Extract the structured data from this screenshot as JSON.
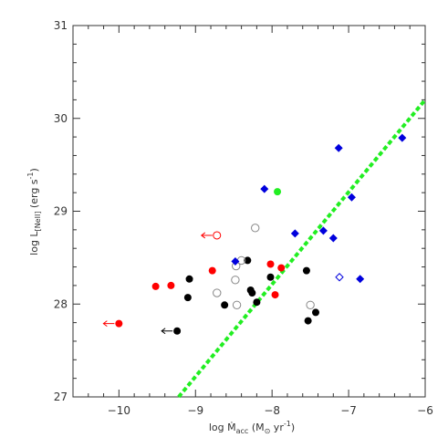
{
  "chart_data": {
    "type": "scatter",
    "title": "",
    "xlabel": {
      "prefix": "log ",
      "symbol": "Ṁ",
      "sub": "acc",
      "units_open": " (M",
      "units_sub": "⊙",
      "units_mid": " yr",
      "units_sup": "-1",
      "units_close": ")"
    },
    "ylabel": {
      "prefix": "log L",
      "sub": "[NeII]",
      "units_open": " (erg s",
      "units_sup": "-1",
      "units_close": ")"
    },
    "xlim": [
      -10.6,
      -6.0
    ],
    "ylim": [
      27.0,
      31.0
    ],
    "xticks": [
      {
        "value": -10,
        "label": "−10"
      },
      {
        "value": -9,
        "label": "−9"
      },
      {
        "value": -8,
        "label": "−8"
      },
      {
        "value": -7,
        "label": "−7"
      },
      {
        "value": -6,
        "label": "−6"
      }
    ],
    "yticks": [
      {
        "value": 27,
        "label": "27"
      },
      {
        "value": 28,
        "label": "28"
      },
      {
        "value": 29,
        "label": "29"
      },
      {
        "value": 30,
        "label": "30"
      },
      {
        "value": 31,
        "label": "31"
      }
    ],
    "colors": {
      "black": "#000000",
      "red": "#ff0000",
      "green": "#22ee22",
      "blue": "#0000dd",
      "gray": "#888888",
      "fit": "#22ee22",
      "axis": "#333333"
    },
    "fit_line": {
      "x": [
        -9.22,
        -6.0
      ],
      "y": [
        27.0,
        30.2
      ]
    },
    "series": [
      {
        "marker": "filled-circle",
        "color": "black",
        "points": [
          {
            "x": -9.08,
            "y": 28.27
          },
          {
            "x": -9.1,
            "y": 28.07
          },
          {
            "x": -8.62,
            "y": 27.99
          },
          {
            "x": -8.32,
            "y": 28.47
          },
          {
            "x": -8.28,
            "y": 28.15
          },
          {
            "x": -8.26,
            "y": 28.12
          },
          {
            "x": -8.2,
            "y": 28.02
          },
          {
            "x": -8.02,
            "y": 28.29
          },
          {
            "x": -7.55,
            "y": 28.36
          },
          {
            "x": -7.53,
            "y": 27.82
          },
          {
            "x": -7.43,
            "y": 27.91
          }
        ]
      },
      {
        "marker": "filled-circle",
        "color": "red",
        "points": [
          {
            "x": -9.52,
            "y": 28.19
          },
          {
            "x": -9.32,
            "y": 28.2
          },
          {
            "x": -8.78,
            "y": 28.36
          },
          {
            "x": -8.02,
            "y": 28.43
          },
          {
            "x": -7.96,
            "y": 28.1
          },
          {
            "x": -7.88,
            "y": 28.39
          }
        ]
      },
      {
        "marker": "filled-circle",
        "color": "green",
        "points": [
          {
            "x": -7.93,
            "y": 29.21
          }
        ]
      },
      {
        "marker": "open-circle",
        "color": "gray",
        "points": [
          {
            "x": -8.72,
            "y": 28.12
          },
          {
            "x": -8.48,
            "y": 28.26
          },
          {
            "x": -8.47,
            "y": 28.41
          },
          {
            "x": -8.4,
            "y": 28.47
          },
          {
            "x": -8.46,
            "y": 27.99
          },
          {
            "x": -8.22,
            "y": 28.82
          },
          {
            "x": -7.5,
            "y": 27.99
          }
        ]
      },
      {
        "marker": "filled-diamond",
        "color": "blue",
        "points": [
          {
            "x": -8.48,
            "y": 28.46
          },
          {
            "x": -8.1,
            "y": 29.24
          },
          {
            "x": -7.7,
            "y": 28.76
          },
          {
            "x": -7.33,
            "y": 28.79
          },
          {
            "x": -7.2,
            "y": 28.71
          },
          {
            "x": -7.13,
            "y": 29.68
          },
          {
            "x": -6.96,
            "y": 29.15
          },
          {
            "x": -6.85,
            "y": 28.27
          },
          {
            "x": -6.3,
            "y": 29.79
          }
        ]
      },
      {
        "marker": "open-diamond",
        "color": "blue",
        "points": [
          {
            "x": -7.12,
            "y": 28.29
          }
        ]
      },
      {
        "marker": "upper-limit-arrow-left",
        "color": "red",
        "open": false,
        "points": [
          {
            "x": -10.0,
            "y": 27.79
          }
        ]
      },
      {
        "marker": "upper-limit-arrow-left",
        "color": "red",
        "open": true,
        "points": [
          {
            "x": -8.72,
            "y": 28.74
          }
        ]
      },
      {
        "marker": "upper-limit-arrow-left",
        "color": "black",
        "open": false,
        "points": [
          {
            "x": -9.24,
            "y": 27.71
          }
        ]
      }
    ]
  }
}
